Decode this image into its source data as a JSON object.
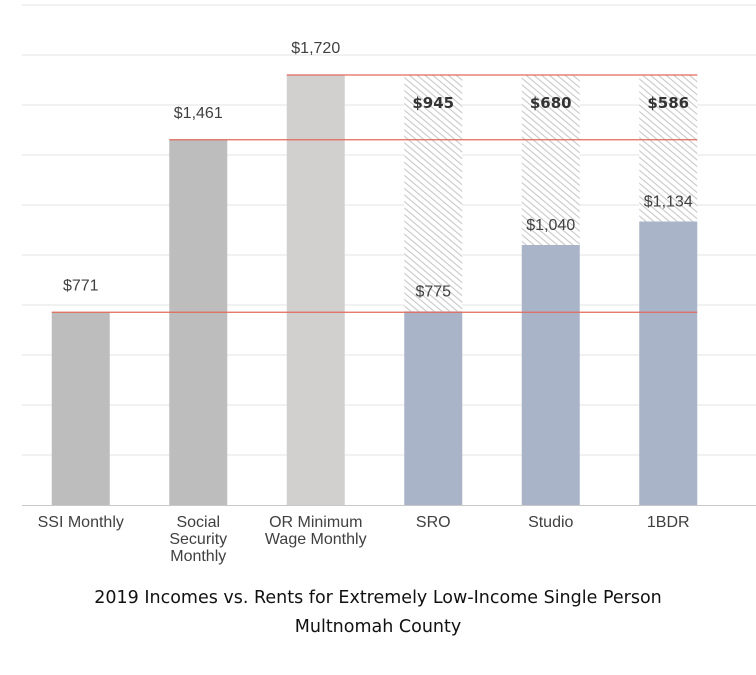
{
  "title_lines": [
    "2019 Incomes vs. Rents for Extremely Low-Income Single Person",
    "Multnomah County"
  ],
  "colors": {
    "income_bar": "#bdbdbd",
    "min_wage_bar": "#d2cfcf",
    "rent_bar": "#a9b4c9",
    "gap_hatch": "#cfcfcf",
    "reference_line": "#e06a5c",
    "grid": "#e3e3e3"
  },
  "chart_data": {
    "type": "bar",
    "title": "2019 Incomes vs. Rents for Extremely Low-Income Single Person Multnomah County",
    "categories": [
      "SSI Monthly",
      "Social Security Monthly",
      "OR Minimum Wage Monthly",
      "SRO",
      "Studio",
      "1BDR"
    ],
    "category_label_lines": [
      [
        "SSI Monthly"
      ],
      [
        "Social",
        "Security",
        "Monthly"
      ],
      [
        "OR Minimum",
        "Wage Monthly"
      ],
      [
        "SRO"
      ],
      [
        "Studio"
      ],
      [
        "1BDR"
      ]
    ],
    "series": [
      {
        "values": [
          771,
          1461,
          1720,
          775,
          1040,
          1134
        ],
        "labels": [
          "$771",
          "$1,461",
          "$1,720",
          "$775",
          "$1,040",
          "$1,134"
        ],
        "kinds": [
          "income",
          "income",
          "wage",
          "rent",
          "rent",
          "rent"
        ]
      },
      {
        "values": [
          null,
          null,
          null,
          945,
          680,
          586
        ],
        "labels": [
          null,
          null,
          null,
          "$945",
          "$680",
          "$586"
        ],
        "kinds": [
          null,
          null,
          null,
          "gap",
          "gap",
          "gap"
        ]
      }
    ],
    "reference_lines": [
      771,
      1461,
      1720
    ],
    "ylim": [
      0,
      2000
    ],
    "grid_step": 200,
    "xlabel": "",
    "ylabel": "",
    "legend": "none",
    "grid": true
  }
}
